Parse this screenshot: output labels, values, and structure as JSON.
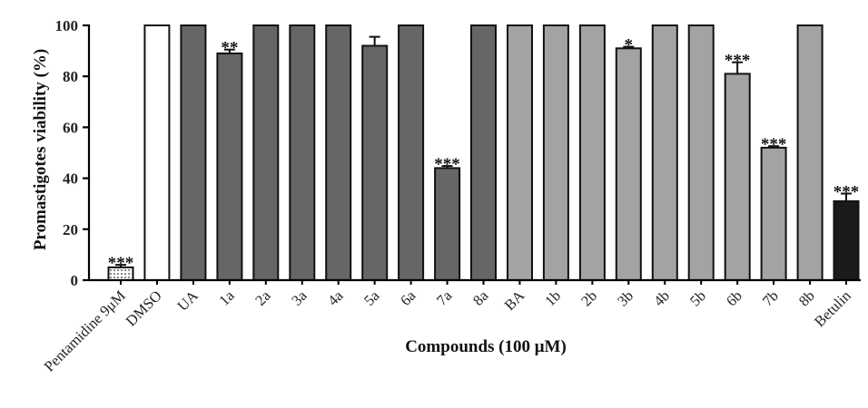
{
  "chart_data": {
    "type": "bar",
    "xlabel": "Compounds (100 μM)",
    "ylabel": "Promastigotes viability (%)",
    "ylim": [
      0,
      100
    ],
    "yticks": [
      "0",
      "20",
      "40",
      "60",
      "80",
      "100"
    ],
    "grid": false,
    "categories": [
      "Pentamidine 9μM",
      "DMSO",
      "UA",
      "1a",
      "2a",
      "3a",
      "4a",
      "5a",
      "6a",
      "7a",
      "8a",
      "BA",
      "1b",
      "2b",
      "3b",
      "4b",
      "5b",
      "6b",
      "7b",
      "8b",
      "Betulin"
    ],
    "values": [
      5,
      100,
      100,
      89,
      100,
      100,
      100,
      92,
      100,
      44,
      100,
      100,
      100,
      100,
      91,
      100,
      100,
      81,
      52,
      100,
      31
    ],
    "errors": [
      1,
      0,
      0,
      1.5,
      0,
      0,
      0,
      3.5,
      0,
      0.8,
      0,
      0,
      0,
      0,
      0.6,
      0,
      0,
      4.5,
      0.6,
      0,
      3
    ],
    "significance": [
      "***",
      "",
      "",
      "**",
      "",
      "",
      "",
      "",
      "",
      "***",
      "",
      "",
      "",
      "",
      "*",
      "",
      "",
      "***",
      "***",
      "",
      "***"
    ],
    "fills": [
      "dotted",
      "#ffffff",
      "#666666",
      "#666666",
      "#666666",
      "#666666",
      "#666666",
      "#666666",
      "#666666",
      "#666666",
      "#666666",
      "#a3a3a3",
      "#a3a3a3",
      "#a3a3a3",
      "#a3a3a3",
      "#a3a3a3",
      "#a3a3a3",
      "#a3a3a3",
      "#a3a3a3",
      "#a3a3a3",
      "#1a1a1a"
    ]
  }
}
